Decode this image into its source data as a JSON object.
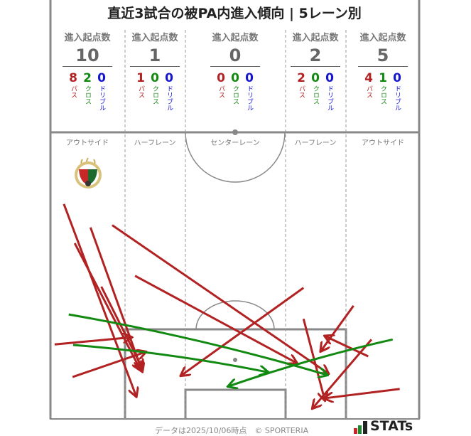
{
  "title": "直近3試合の被PA内進入傾向 | 5レーン別",
  "header_label": "進入起点数",
  "type_labels": {
    "pass": "パス",
    "cross": "クロス",
    "dribble": "ドリブル"
  },
  "lanes": [
    {
      "name": "アウトサイド",
      "total": "10",
      "pass": "8",
      "cross": "2",
      "dribble": "0"
    },
    {
      "name": "ハーフレーン",
      "total": "1",
      "pass": "1",
      "cross": "0",
      "dribble": "0"
    },
    {
      "name": "センターレーン",
      "total": "0",
      "pass": "0",
      "cross": "0",
      "dribble": "0"
    },
    {
      "name": "ハーフレーン",
      "total": "2",
      "pass": "2",
      "cross": "0",
      "dribble": "0"
    },
    {
      "name": "アウトサイド",
      "total": "5",
      "pass": "4",
      "cross": "1",
      "dribble": "0"
    }
  ],
  "colors": {
    "pass": "#b22222",
    "cross": "#128a12",
    "dribble": "#1515d0",
    "pitch_line": "#888888"
  },
  "footer": "データは2025/10/06時点　© SPORTERIA",
  "brand": "STATs",
  "chart_data": {
    "type": "arrow-map",
    "units": "meters (x across pitch width 0-68, d = distance from goal line)",
    "pass_arrows": [
      [
        [
          2.6,
          39.5
        ],
        [
          15.9,
          4.2
        ]
      ],
      [
        [
          4.6,
          32.3
        ],
        [
          16.7,
          9.0
        ]
      ],
      [
        [
          7.5,
          35.2
        ],
        [
          17.0,
          8.8
        ]
      ],
      [
        [
          9.5,
          24.3
        ],
        [
          17.0,
          9.4
        ]
      ],
      [
        [
          11.5,
          35.6
        ],
        [
          51.2,
          8.4
        ]
      ],
      [
        [
          15.7,
          26.3
        ],
        [
          45.4,
          10.3
        ]
      ],
      [
        [
          46.7,
          24.1
        ],
        [
          24.2,
          8.0
        ]
      ],
      [
        [
          0.9,
          13.7
        ],
        [
          15.0,
          15.0
        ]
      ],
      [
        [
          4.2,
          7.7
        ],
        [
          17.6,
          12.3
        ]
      ],
      [
        [
          46.7,
          18.4
        ],
        [
          50.6,
          3.5
        ]
      ],
      [
        [
          55.9,
          20.8
        ],
        [
          49.9,
          12.5
        ]
      ],
      [
        [
          58.6,
          11.5
        ],
        [
          50.7,
          15.2
        ]
      ],
      [
        [
          59.2,
          14.6
        ],
        [
          48.4,
          2.0
        ]
      ],
      [
        [
          64.4,
          5.5
        ],
        [
          50.6,
          3.8
        ]
      ]
    ],
    "cross_arrows": [
      [
        [
          3.5,
          19.2
        ],
        [
          51.0,
          8.1
        ]
      ],
      [
        [
          4.3,
          13.6
        ],
        [
          40.1,
          8.6
        ]
      ],
      [
        [
          63.1,
          14.6
        ],
        [
          32.9,
          6.0
        ]
      ]
    ],
    "dribble_arrows": []
  }
}
